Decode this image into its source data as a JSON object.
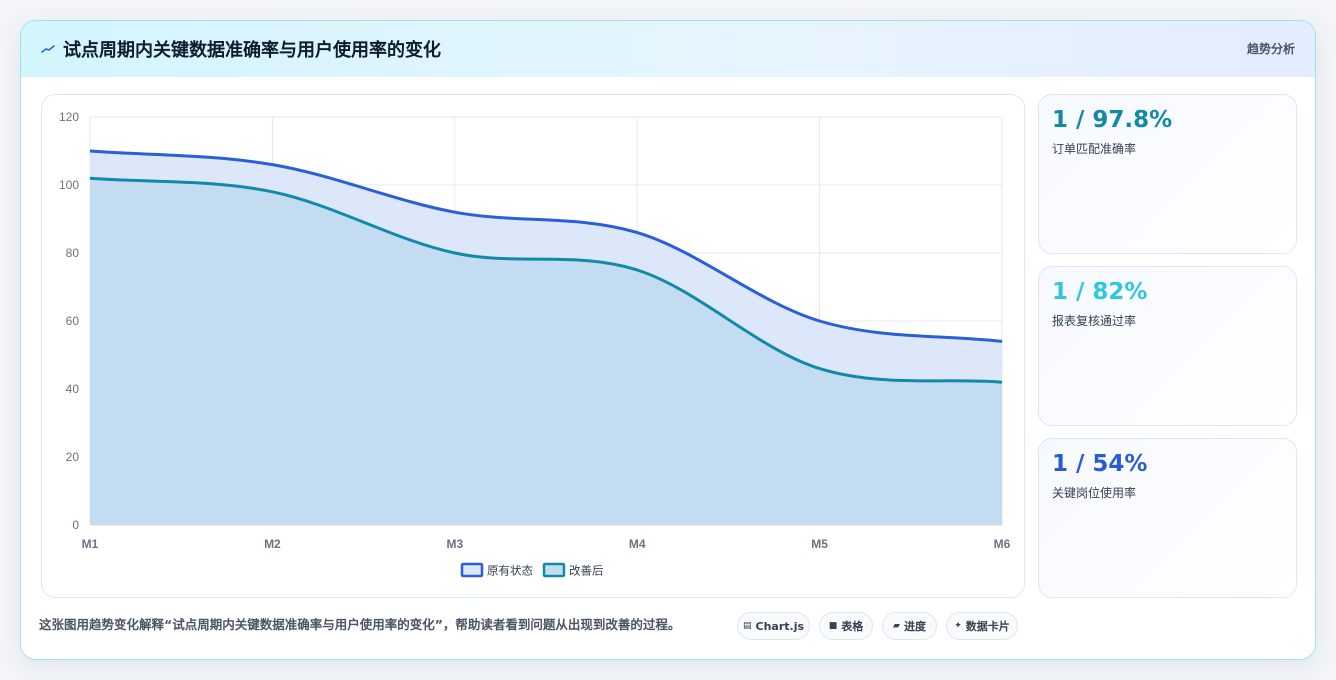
{
  "header": {
    "title": "试点周期内关键数据准确率与用户使用率的变化",
    "tag": "趋势分析"
  },
  "chart_data": {
    "type": "area",
    "categories": [
      "M1",
      "M2",
      "M3",
      "M4",
      "M5",
      "M6"
    ],
    "series": [
      {
        "name": "原有状态",
        "values": [
          110,
          106,
          92,
          86,
          60,
          54
        ],
        "color": "#2b5fd9",
        "fill": "#dde7fa"
      },
      {
        "name": "改善后",
        "values": [
          102,
          98,
          80,
          75,
          46,
          42
        ],
        "color": "#118aaa",
        "fill": "#c4dcf1"
      }
    ],
    "ylim": [
      0,
      120
    ],
    "yticks": [
      0,
      20,
      40,
      60,
      80,
      100,
      120
    ],
    "grid": true,
    "legend_position": "bottom"
  },
  "stats": [
    {
      "value": "1 / 97.8%",
      "label": "订单匹配准确率",
      "color": "#1289a7"
    },
    {
      "value": "1 / 82%",
      "label": "报表复核通过率",
      "color": "#2ec8dc"
    },
    {
      "value": "1 / 54%",
      "label": "关键岗位使用率",
      "color": "#2a5bd7"
    }
  ],
  "caption": "这张图用趋势变化解释“试点周期内关键数据准确率与用户使用率的变化”，帮助读者看到问题从出现到改善的过程。",
  "chips": [
    {
      "icon": "chart-icon",
      "glyph": "▤",
      "label": "Chart.js"
    },
    {
      "icon": "table-icon",
      "glyph": "■",
      "label": "表格"
    },
    {
      "icon": "progress-icon",
      "glyph": "▰",
      "label": "进度"
    },
    {
      "icon": "sparkle-icon",
      "glyph": "✦",
      "label": "数据卡片"
    }
  ]
}
